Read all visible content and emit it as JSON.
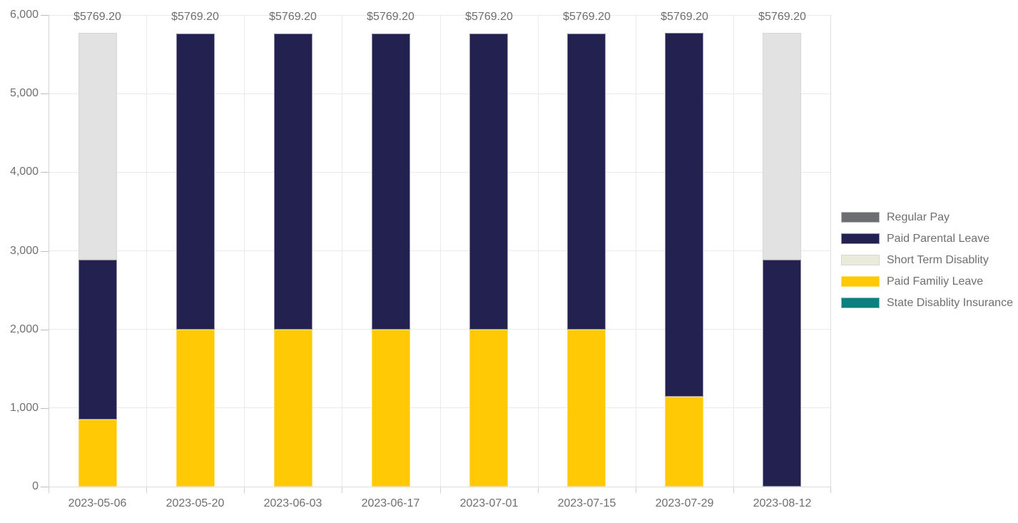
{
  "chart_data": {
    "type": "bar",
    "stacked": true,
    "title": "",
    "xlabel": "",
    "ylabel": "",
    "ylim": [
      0,
      6000
    ],
    "ytick_step": 1000,
    "ytick_labels": [
      "0",
      "1,000",
      "2,000",
      "3,000",
      "4,000",
      "5,000",
      "6,000"
    ],
    "grid": true,
    "legend_position": "right",
    "categories": [
      "2023-05-06",
      "2023-05-20",
      "2023-06-03",
      "2023-06-17",
      "2023-07-01",
      "2023-07-15",
      "2023-07-29",
      "2023-08-12"
    ],
    "bar_total": 5769.2,
    "bar_total_labels": [
      "$5769.20",
      "$5769.20",
      "$5769.20",
      "$5769.20",
      "$5769.20",
      "$5769.20",
      "$5769.20",
      "$5769.20"
    ],
    "series": [
      {
        "name": "Regular Pay",
        "key": "regular-pay",
        "color": "#6d6e71",
        "border": "rgba(255,255,255,0.5)",
        "values": [
          0,
          0,
          0,
          0,
          0,
          0,
          0,
          0
        ]
      },
      {
        "name": "Paid Parental Leave",
        "key": "paid-parental-leave",
        "color": "#232150",
        "border": "rgba(255,255,255,0.5)",
        "values": [
          2034.6,
          3769.2,
          3769.2,
          3769.2,
          3769.2,
          3769.2,
          4629.2,
          2884.6
        ]
      },
      {
        "name": "Short Term Disablity",
        "key": "short-term-disablity",
        "color": "#e2e2e2",
        "legend_color": "#ebebdc",
        "border": "#d8d8d2",
        "values": [
          2884.6,
          0,
          0,
          0,
          0,
          0,
          0,
          2884.6
        ]
      },
      {
        "name": "Paid Familiy Leave",
        "key": "paid-familiy-leave",
        "color": "#ffc906",
        "border": "rgba(255,255,255,0.4)",
        "values": [
          850.0,
          2000.0,
          2000.0,
          2000.0,
          2000.0,
          2000.0,
          1140.0,
          0
        ]
      },
      {
        "name": "State Disablity Insurance",
        "key": "state-disablity-insurance",
        "color": "#0e7f7e",
        "border": "rgba(255,255,255,0.5)",
        "values": [
          0,
          0,
          0,
          0,
          0,
          0,
          0,
          0
        ]
      }
    ],
    "stack_order": [
      0,
      3,
      1,
      2,
      4
    ]
  }
}
